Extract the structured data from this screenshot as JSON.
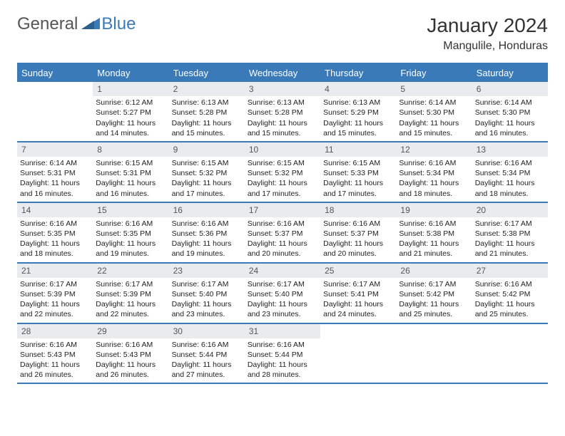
{
  "logo": {
    "general": "General",
    "blue": "Blue"
  },
  "title": {
    "month": "January 2024",
    "location": "Mangulile, Honduras"
  },
  "style": {
    "header_bg": "#3a7ab8",
    "border_color": "#3a7ab8",
    "daynum_bg": "#e9ecef",
    "page_bg": "#ffffff",
    "text_color": "#333333",
    "weekday_fontsize": 13,
    "title_fontsize": 28,
    "location_fontsize": 16,
    "cell_fontsize": 10.5
  },
  "weekdays": [
    "Sunday",
    "Monday",
    "Tuesday",
    "Wednesday",
    "Thursday",
    "Friday",
    "Saturday"
  ],
  "weeks": [
    [
      {
        "n": "",
        "sr": "",
        "ss": "",
        "dl": ""
      },
      {
        "n": "1",
        "sr": "Sunrise: 6:12 AM",
        "ss": "Sunset: 5:27 PM",
        "dl": "Daylight: 11 hours and 14 minutes."
      },
      {
        "n": "2",
        "sr": "Sunrise: 6:13 AM",
        "ss": "Sunset: 5:28 PM",
        "dl": "Daylight: 11 hours and 15 minutes."
      },
      {
        "n": "3",
        "sr": "Sunrise: 6:13 AM",
        "ss": "Sunset: 5:28 PM",
        "dl": "Daylight: 11 hours and 15 minutes."
      },
      {
        "n": "4",
        "sr": "Sunrise: 6:13 AM",
        "ss": "Sunset: 5:29 PM",
        "dl": "Daylight: 11 hours and 15 minutes."
      },
      {
        "n": "5",
        "sr": "Sunrise: 6:14 AM",
        "ss": "Sunset: 5:30 PM",
        "dl": "Daylight: 11 hours and 15 minutes."
      },
      {
        "n": "6",
        "sr": "Sunrise: 6:14 AM",
        "ss": "Sunset: 5:30 PM",
        "dl": "Daylight: 11 hours and 16 minutes."
      }
    ],
    [
      {
        "n": "7",
        "sr": "Sunrise: 6:14 AM",
        "ss": "Sunset: 5:31 PM",
        "dl": "Daylight: 11 hours and 16 minutes."
      },
      {
        "n": "8",
        "sr": "Sunrise: 6:15 AM",
        "ss": "Sunset: 5:31 PM",
        "dl": "Daylight: 11 hours and 16 minutes."
      },
      {
        "n": "9",
        "sr": "Sunrise: 6:15 AM",
        "ss": "Sunset: 5:32 PM",
        "dl": "Daylight: 11 hours and 17 minutes."
      },
      {
        "n": "10",
        "sr": "Sunrise: 6:15 AM",
        "ss": "Sunset: 5:32 PM",
        "dl": "Daylight: 11 hours and 17 minutes."
      },
      {
        "n": "11",
        "sr": "Sunrise: 6:15 AM",
        "ss": "Sunset: 5:33 PM",
        "dl": "Daylight: 11 hours and 17 minutes."
      },
      {
        "n": "12",
        "sr": "Sunrise: 6:16 AM",
        "ss": "Sunset: 5:34 PM",
        "dl": "Daylight: 11 hours and 18 minutes."
      },
      {
        "n": "13",
        "sr": "Sunrise: 6:16 AM",
        "ss": "Sunset: 5:34 PM",
        "dl": "Daylight: 11 hours and 18 minutes."
      }
    ],
    [
      {
        "n": "14",
        "sr": "Sunrise: 6:16 AM",
        "ss": "Sunset: 5:35 PM",
        "dl": "Daylight: 11 hours and 18 minutes."
      },
      {
        "n": "15",
        "sr": "Sunrise: 6:16 AM",
        "ss": "Sunset: 5:35 PM",
        "dl": "Daylight: 11 hours and 19 minutes."
      },
      {
        "n": "16",
        "sr": "Sunrise: 6:16 AM",
        "ss": "Sunset: 5:36 PM",
        "dl": "Daylight: 11 hours and 19 minutes."
      },
      {
        "n": "17",
        "sr": "Sunrise: 6:16 AM",
        "ss": "Sunset: 5:37 PM",
        "dl": "Daylight: 11 hours and 20 minutes."
      },
      {
        "n": "18",
        "sr": "Sunrise: 6:16 AM",
        "ss": "Sunset: 5:37 PM",
        "dl": "Daylight: 11 hours and 20 minutes."
      },
      {
        "n": "19",
        "sr": "Sunrise: 6:16 AM",
        "ss": "Sunset: 5:38 PM",
        "dl": "Daylight: 11 hours and 21 minutes."
      },
      {
        "n": "20",
        "sr": "Sunrise: 6:17 AM",
        "ss": "Sunset: 5:38 PM",
        "dl": "Daylight: 11 hours and 21 minutes."
      }
    ],
    [
      {
        "n": "21",
        "sr": "Sunrise: 6:17 AM",
        "ss": "Sunset: 5:39 PM",
        "dl": "Daylight: 11 hours and 22 minutes."
      },
      {
        "n": "22",
        "sr": "Sunrise: 6:17 AM",
        "ss": "Sunset: 5:39 PM",
        "dl": "Daylight: 11 hours and 22 minutes."
      },
      {
        "n": "23",
        "sr": "Sunrise: 6:17 AM",
        "ss": "Sunset: 5:40 PM",
        "dl": "Daylight: 11 hours and 23 minutes."
      },
      {
        "n": "24",
        "sr": "Sunrise: 6:17 AM",
        "ss": "Sunset: 5:40 PM",
        "dl": "Daylight: 11 hours and 23 minutes."
      },
      {
        "n": "25",
        "sr": "Sunrise: 6:17 AM",
        "ss": "Sunset: 5:41 PM",
        "dl": "Daylight: 11 hours and 24 minutes."
      },
      {
        "n": "26",
        "sr": "Sunrise: 6:17 AM",
        "ss": "Sunset: 5:42 PM",
        "dl": "Daylight: 11 hours and 25 minutes."
      },
      {
        "n": "27",
        "sr": "Sunrise: 6:16 AM",
        "ss": "Sunset: 5:42 PM",
        "dl": "Daylight: 11 hours and 25 minutes."
      }
    ],
    [
      {
        "n": "28",
        "sr": "Sunrise: 6:16 AM",
        "ss": "Sunset: 5:43 PM",
        "dl": "Daylight: 11 hours and 26 minutes."
      },
      {
        "n": "29",
        "sr": "Sunrise: 6:16 AM",
        "ss": "Sunset: 5:43 PM",
        "dl": "Daylight: 11 hours and 26 minutes."
      },
      {
        "n": "30",
        "sr": "Sunrise: 6:16 AM",
        "ss": "Sunset: 5:44 PM",
        "dl": "Daylight: 11 hours and 27 minutes."
      },
      {
        "n": "31",
        "sr": "Sunrise: 6:16 AM",
        "ss": "Sunset: 5:44 PM",
        "dl": "Daylight: 11 hours and 28 minutes."
      },
      {
        "n": "",
        "sr": "",
        "ss": "",
        "dl": ""
      },
      {
        "n": "",
        "sr": "",
        "ss": "",
        "dl": ""
      },
      {
        "n": "",
        "sr": "",
        "ss": "",
        "dl": ""
      }
    ]
  ]
}
